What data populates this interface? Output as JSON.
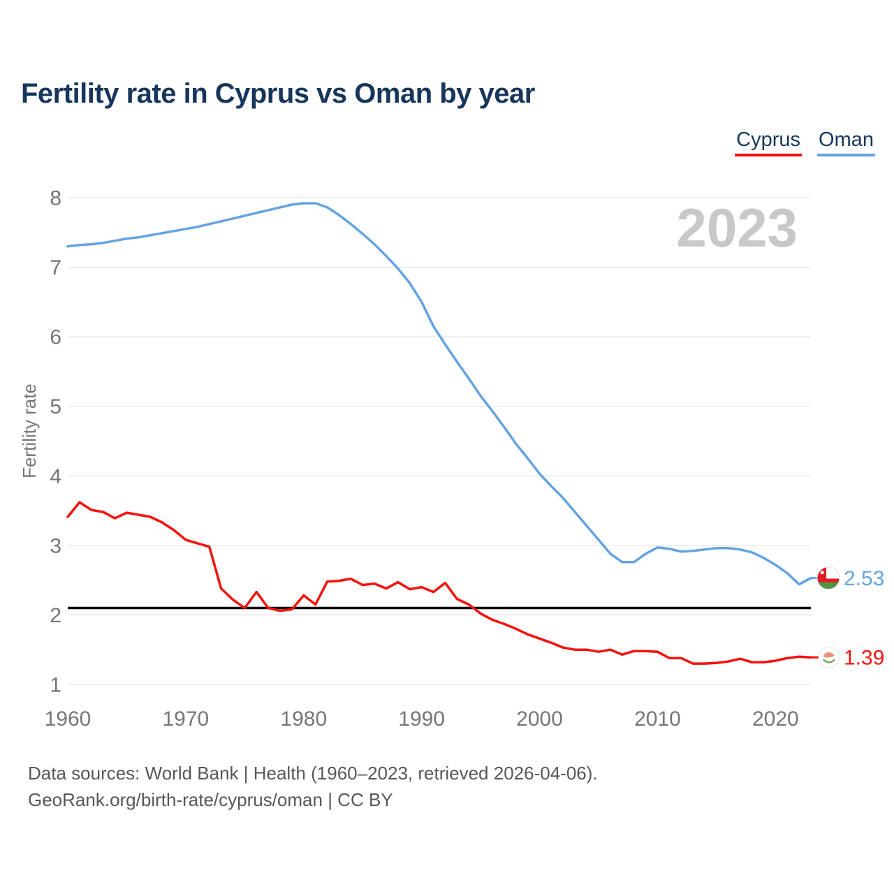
{
  "header": {
    "title": "Fertility rate in Cyprus vs Oman by year"
  },
  "legend": [
    {
      "label": "Cyprus",
      "color": "#f5120b"
    },
    {
      "label": "Oman",
      "color": "#64a3e1"
    }
  ],
  "watermark": "2023",
  "chart_data": {
    "type": "line",
    "title": "Fertility rate in Cyprus vs Oman by year",
    "xlabel": "",
    "ylabel": "Fertility rate",
    "x_start": 1960,
    "x_end": 2023,
    "x_ticks": [
      1960,
      1970,
      1980,
      1990,
      2000,
      2010,
      2020
    ],
    "y_ticks": [
      1,
      2,
      3,
      4,
      5,
      6,
      7,
      8
    ],
    "ylim": [
      1,
      8
    ],
    "grid": true,
    "legend_position": "top-right",
    "reference_line": {
      "value": 2.1,
      "color": "#000000"
    },
    "series": [
      {
        "name": "Oman",
        "color": "#64a3e1",
        "flag": "oman",
        "end_label": "2.53",
        "values": [
          7.3,
          7.32,
          7.33,
          7.35,
          7.38,
          7.41,
          7.43,
          7.46,
          7.49,
          7.52,
          7.55,
          7.58,
          7.62,
          7.66,
          7.7,
          7.74,
          7.78,
          7.82,
          7.86,
          7.9,
          7.92,
          7.92,
          7.86,
          7.75,
          7.62,
          7.48,
          7.33,
          7.16,
          6.98,
          6.77,
          6.5,
          6.15,
          5.89,
          5.64,
          5.4,
          5.15,
          4.93,
          4.7,
          4.46,
          4.25,
          4.03,
          3.85,
          3.68,
          3.48,
          3.28,
          3.08,
          2.88,
          2.76,
          2.76,
          2.88,
          2.97,
          2.95,
          2.91,
          2.92,
          2.94,
          2.96,
          2.96,
          2.94,
          2.9,
          2.82,
          2.72,
          2.6,
          2.44,
          2.53
        ]
      },
      {
        "name": "Cyprus",
        "color": "#f5120b",
        "flag": "cyprus",
        "end_label": "1.39",
        "values": [
          3.41,
          3.62,
          3.51,
          3.48,
          3.39,
          3.47,
          3.44,
          3.41,
          3.33,
          3.22,
          3.08,
          3.03,
          2.98,
          2.38,
          2.22,
          2.1,
          2.33,
          2.1,
          2.06,
          2.08,
          2.28,
          2.15,
          2.48,
          2.49,
          2.52,
          2.43,
          2.45,
          2.38,
          2.47,
          2.37,
          2.4,
          2.33,
          2.46,
          2.23,
          2.15,
          2.02,
          1.93,
          1.87,
          1.8,
          1.72,
          1.66,
          1.6,
          1.53,
          1.5,
          1.5,
          1.47,
          1.5,
          1.43,
          1.48,
          1.48,
          1.47,
          1.38,
          1.38,
          1.3,
          1.3,
          1.31,
          1.33,
          1.37,
          1.32,
          1.32,
          1.34,
          1.38,
          1.4,
          1.39
        ]
      }
    ]
  },
  "footer": {
    "line1": "Data sources: World Bank | Health (1960–2023, retrieved 2026-04-06).",
    "line2": "GeoRank.org/birth-rate/cyprus/oman | CC BY"
  }
}
